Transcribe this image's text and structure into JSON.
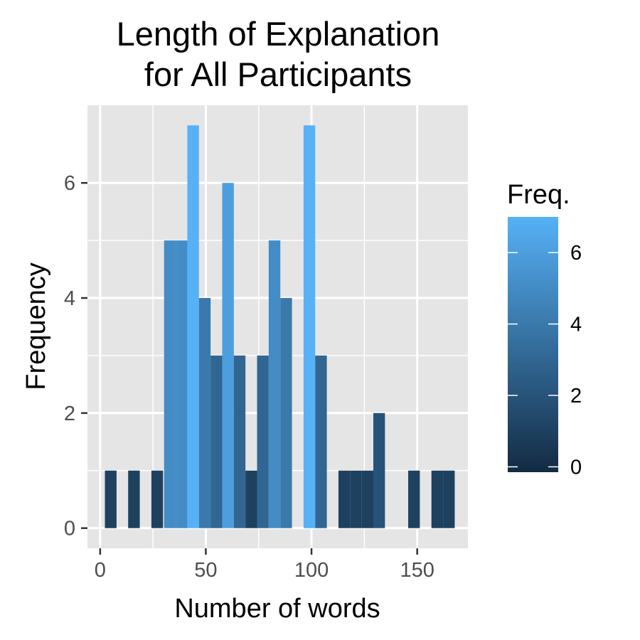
{
  "chart_data": {
    "type": "bar",
    "title_lines": [
      "Length of Explanation",
      "for All Participants"
    ],
    "xlabel": "Number of words",
    "ylabel": "Frequency",
    "xlim": [
      -6,
      174
    ],
    "ylim": [
      -0.35,
      7.35
    ],
    "x_ticks": [
      0,
      50,
      100,
      150
    ],
    "y_ticks": [
      0,
      2,
      4,
      6
    ],
    "bin_width": 5.5,
    "bins": [
      {
        "x": 5,
        "count": 1
      },
      {
        "x": 16,
        "count": 1
      },
      {
        "x": 27,
        "count": 1
      },
      {
        "x": 33,
        "count": 5
      },
      {
        "x": 38.5,
        "count": 5
      },
      {
        "x": 44,
        "count": 7
      },
      {
        "x": 49.5,
        "count": 4
      },
      {
        "x": 55,
        "count": 3
      },
      {
        "x": 60.5,
        "count": 6
      },
      {
        "x": 66,
        "count": 3
      },
      {
        "x": 71.5,
        "count": 1
      },
      {
        "x": 77,
        "count": 3
      },
      {
        "x": 82.5,
        "count": 5
      },
      {
        "x": 88,
        "count": 4
      },
      {
        "x": 99,
        "count": 7
      },
      {
        "x": 104.5,
        "count": 3
      },
      {
        "x": 115.5,
        "count": 1
      },
      {
        "x": 121,
        "count": 1
      },
      {
        "x": 126.5,
        "count": 1
      },
      {
        "x": 132,
        "count": 2
      },
      {
        "x": 148.5,
        "count": 1
      },
      {
        "x": 159.5,
        "count": 1
      },
      {
        "x": 165,
        "count": 1
      }
    ],
    "grid": true,
    "legend": {
      "title": "Freq.",
      "placement": "right",
      "range": [
        -0.15,
        7
      ],
      "ticks": [
        0,
        2,
        4,
        6
      ],
      "low_color": "#132b43",
      "high_color": "#56b1f7"
    },
    "colors": {
      "panel_background": "#e5e5e5",
      "grid_line": "#ffffff",
      "tick_mark": "#333333",
      "tick_text": "#4d4d4d"
    }
  }
}
